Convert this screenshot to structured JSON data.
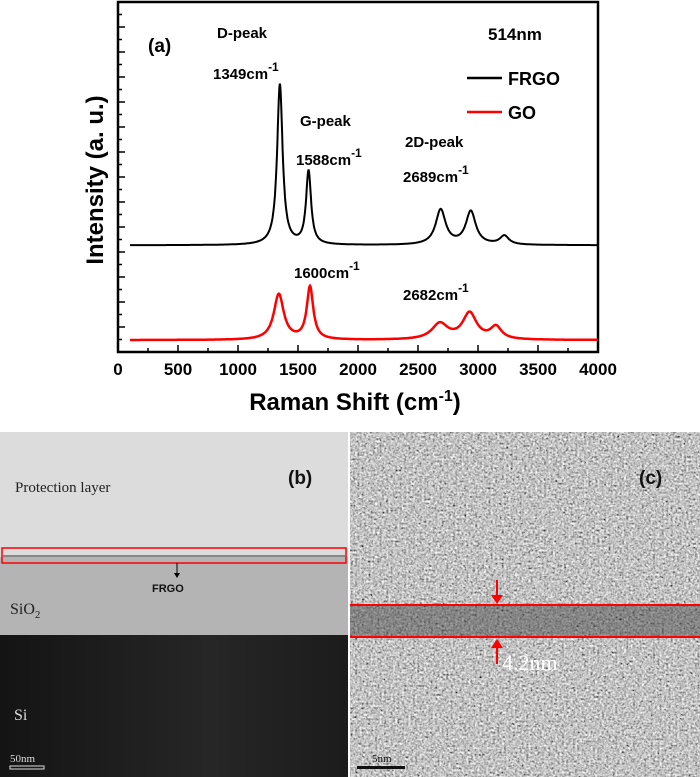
{
  "chart_data": {
    "type": "line",
    "panel_label": "(a)",
    "xlabel": "Raman Shift (cm",
    "xlabel_sup": "-1",
    "xlabel_end": ")",
    "ylabel": "Intensity (a. u.)",
    "xlim": [
      0,
      4000
    ],
    "ylim": [
      0,
      100
    ],
    "x_ticks": [
      "0",
      "500",
      "1000",
      "1500",
      "2000",
      "2500",
      "3000",
      "3500",
      "4000"
    ],
    "y_tick_labels_shown": false,
    "grid": false,
    "legend": {
      "title": "514nm",
      "placement": "top-right"
    },
    "series": [
      {
        "name": "FRGO",
        "color": "#000000",
        "baseline": 30.5,
        "x_start": 100,
        "x_end": 4000,
        "peaks": [
          {
            "x": 1349,
            "height": 46,
            "fwhm": 55
          },
          {
            "x": 1588,
            "height": 21,
            "fwhm": 50
          },
          {
            "x": 2689,
            "height": 10,
            "fwhm": 100
          },
          {
            "x": 2940,
            "height": 9.5,
            "fwhm": 100
          },
          {
            "x": 3220,
            "height": 2.5,
            "fwhm": 90
          }
        ]
      },
      {
        "name": "GO",
        "color": "#ff0000",
        "baseline": 3.4,
        "x_start": 100,
        "x_end": 4000,
        "peaks": [
          {
            "x": 1340,
            "height": 13,
            "fwhm": 100
          },
          {
            "x": 1600,
            "height": 15,
            "fwhm": 65
          },
          {
            "x": 2682,
            "height": 4.5,
            "fwhm": 160
          },
          {
            "x": 2930,
            "height": 7.5,
            "fwhm": 140
          },
          {
            "x": 3150,
            "height": 3.5,
            "fwhm": 110
          }
        ]
      }
    ],
    "annotations": [
      {
        "text": "D-peak",
        "sub": ""
      },
      {
        "text": "1349cm",
        "sup": "-1"
      },
      {
        "text": "G-peak",
        "sub": ""
      },
      {
        "text": "1588cm",
        "sup": "-1"
      },
      {
        "text": "2D-peak",
        "sub": ""
      },
      {
        "text": "2689cm",
        "sup": "-1"
      },
      {
        "text": "1600cm",
        "sup": "-1"
      },
      {
        "text": "2682cm",
        "sup": "-1"
      }
    ]
  },
  "panel_b": {
    "label": "(b)",
    "protection_layer": "Protection layer",
    "frgo": "FRGO",
    "sio2": "SiO",
    "sio2_sub": "2",
    "si": "Si",
    "scale_bar": "50nm",
    "highlight_color": "#ff0000"
  },
  "panel_c": {
    "label": "(c)",
    "thickness": "4.2nm",
    "scale_bar": "5nm",
    "highlight_color": "#ff0000"
  }
}
